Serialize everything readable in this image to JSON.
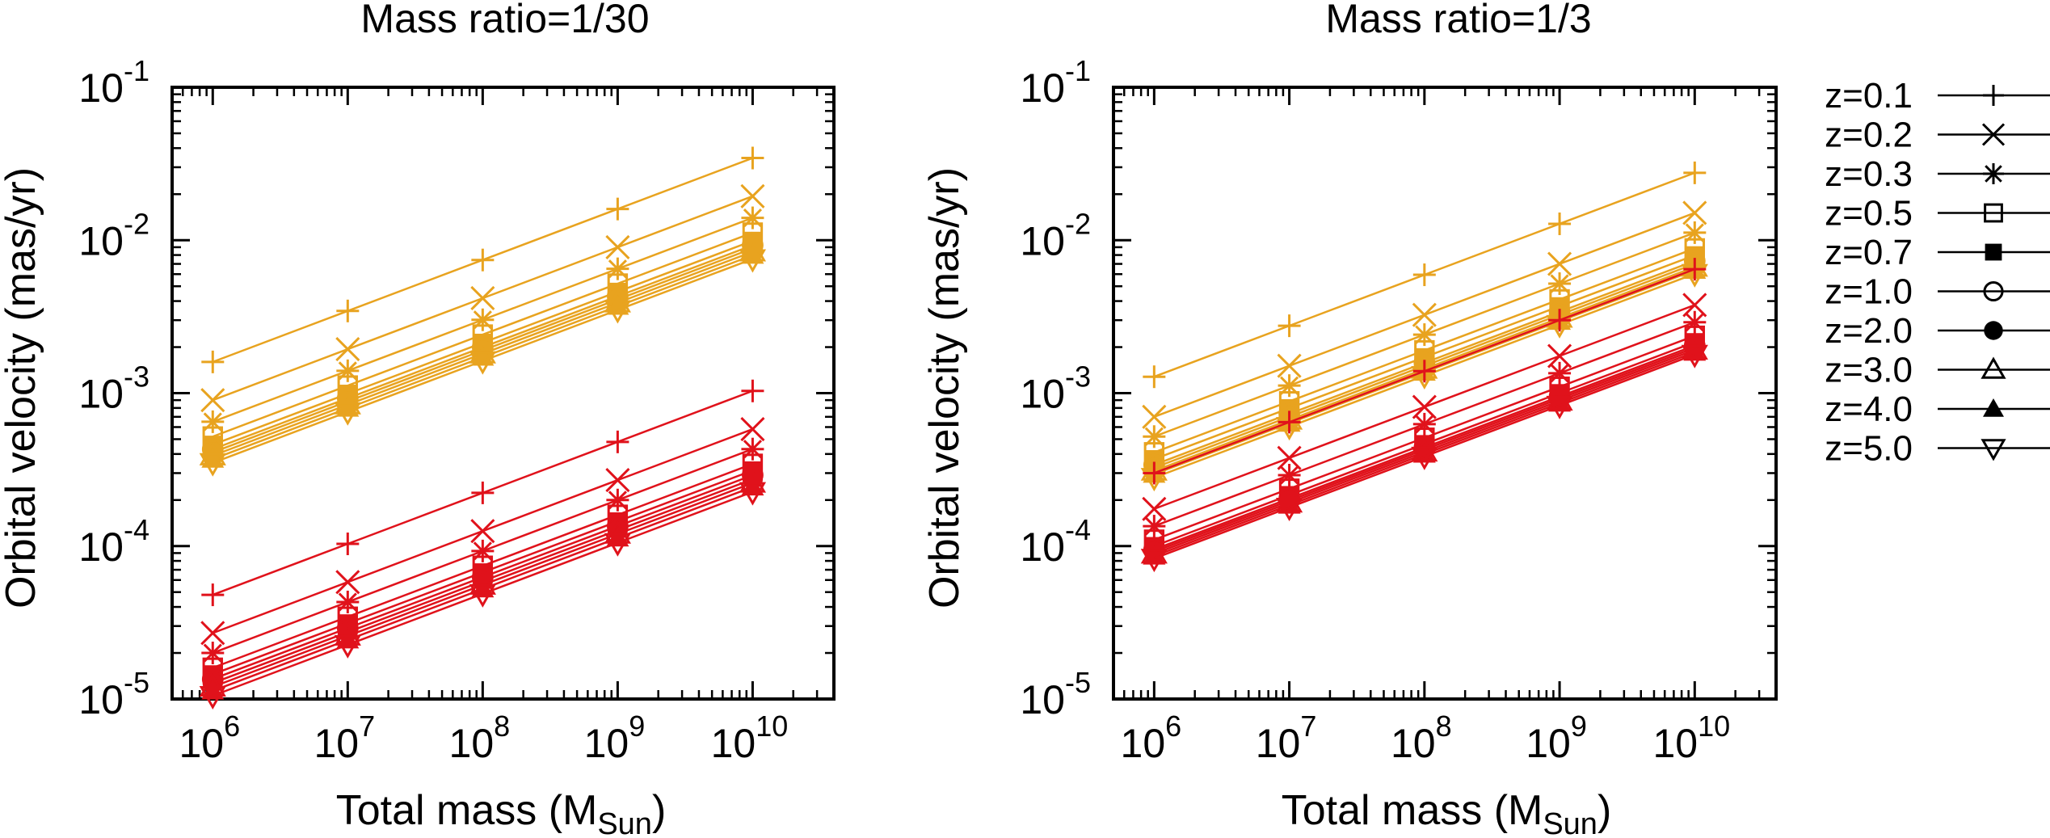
{
  "colors": {
    "series_a": "#e8a31f",
    "series_b": "#e0121b",
    "axis": "#000000"
  },
  "legend": [
    {
      "label": "z=0.1",
      "marker": "plus"
    },
    {
      "label": "z=0.2",
      "marker": "cross"
    },
    {
      "label": "z=0.3",
      "marker": "star"
    },
    {
      "label": "z=0.5",
      "marker": "square-open"
    },
    {
      "label": "z=0.7",
      "marker": "square-filled"
    },
    {
      "label": "z=1.0",
      "marker": "circle-open"
    },
    {
      "label": "z=2.0",
      "marker": "circle-filled"
    },
    {
      "label": "z=3.0",
      "marker": "triangle-open"
    },
    {
      "label": "z=4.0",
      "marker": "triangle-filled"
    },
    {
      "label": "z=5.0",
      "marker": "triangle-down-open"
    }
  ],
  "chart_data": [
    {
      "type": "line",
      "title": "Mass ratio=1/30",
      "xlabel": "Total mass (M",
      "xlabel_sub": "Sun",
      "xlabel_close": ")",
      "ylabel": "Orbital velocity (mas/yr)",
      "xscale": "log",
      "yscale": "log",
      "xlim": [
        500000,
        40000000000
      ],
      "ylim": [
        1e-05,
        0.1
      ],
      "x": [
        1000000,
        10000000,
        100000000,
        1000000000,
        10000000000
      ],
      "x_tick_exponents": [
        "6",
        "7",
        "8",
        "9",
        "10"
      ],
      "y_tick_exponents": [
        "-5",
        "-4",
        "-3",
        "-2",
        "-1"
      ],
      "groups": [
        {
          "color_key": "series_a",
          "start": [
            0.0016,
            0.0009,
            0.00065,
            0.00052,
            0.00046,
            0.00043,
            0.00041,
            0.00039,
            0.00037,
            0.00035
          ]
        },
        {
          "color_key": "series_b",
          "start": [
            4.8e-05,
            2.7e-05,
            2e-05,
            1.6e-05,
            1.45e-05,
            1.35e-05,
            1.27e-05,
            1.2e-05,
            1.13e-05,
            1.05e-05
          ]
        }
      ]
    },
    {
      "type": "line",
      "title": "Mass ratio=1/3",
      "xlabel": "Total mass (M",
      "xlabel_sub": "Sun",
      "xlabel_close": ")",
      "ylabel": "Orbital velocity (mas/yr)",
      "xscale": "log",
      "yscale": "log",
      "xlim": [
        500000,
        40000000000
      ],
      "ylim": [
        1e-05,
        0.1
      ],
      "x": [
        1000000,
        10000000,
        100000000,
        1000000000,
        10000000000
      ],
      "x_tick_exponents": [
        "6",
        "7",
        "8",
        "9",
        "10"
      ],
      "y_tick_exponents": [
        "-5",
        "-4",
        "-3",
        "-2",
        "-1"
      ],
      "groups": [
        {
          "color_key": "series_a",
          "start": [
            0.00128,
            0.0007,
            0.00052,
            0.00041,
            0.00037,
            0.00034,
            0.000325,
            0.00031,
            0.000295,
            0.00028
          ]
        },
        {
          "color_key": "series_b",
          "start": [
            0.0003,
            0.000175,
            0.000135,
            0.00011,
            0.0001,
            9.5e-05,
            9.2e-05,
            8.9e-05,
            8.6e-05,
            8.3e-05
          ]
        }
      ]
    }
  ]
}
